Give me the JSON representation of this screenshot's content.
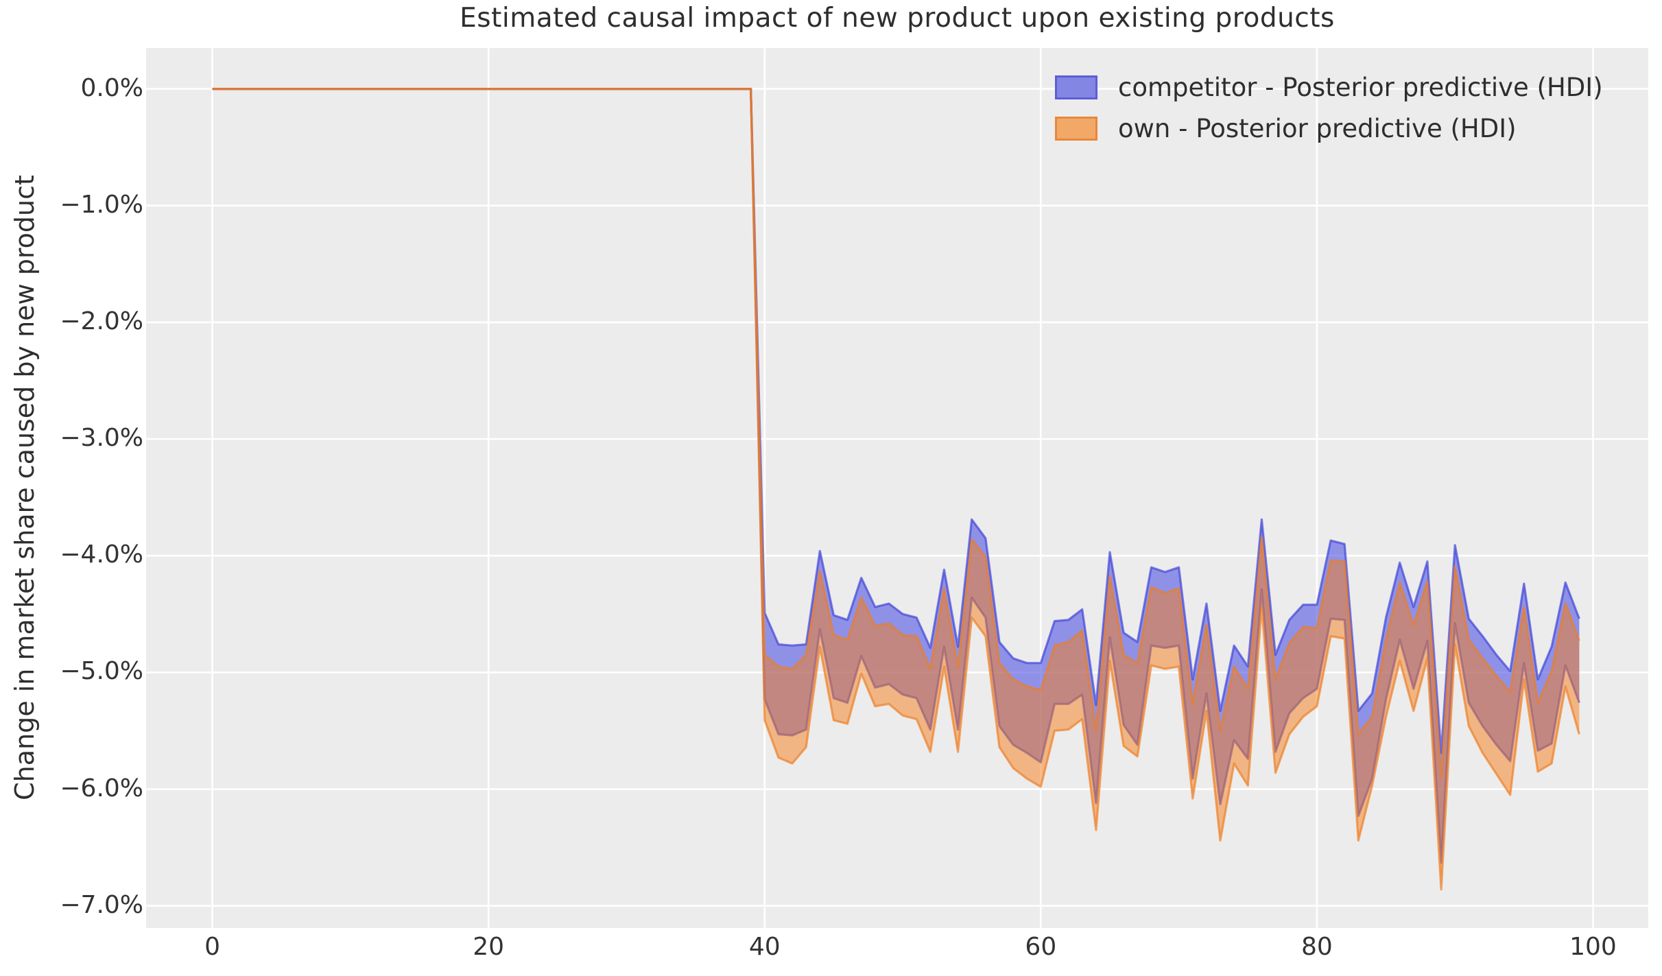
{
  "title": "Estimated causal impact of new product upon existing products",
  "colors": {
    "figure_bg": "#ffffff",
    "axes_bg": "#ececec",
    "grid": "#ffffff",
    "text": "#2e2e2e",
    "tick_text": "#333333",
    "competitor_fill": "rgba(85,88,228,0.62)",
    "competitor_edge": "rgba(60,65,215,0.68)",
    "own_fill": "rgba(245,125,25,0.5)",
    "own_edge": "rgba(238,125,35,0.68)"
  },
  "legend": {
    "items": [
      {
        "label": "competitor - Posterior predictive (HDI)",
        "fill": "#8486e3",
        "edge": "#5c5ed6"
      },
      {
        "label": "own - Posterior predictive (HDI)",
        "fill": "#f2a967",
        "edge": "#e8873c"
      }
    ]
  },
  "chart_data": {
    "type": "area",
    "title": "Estimated causal impact of new product upon existing products",
    "xlabel": "",
    "ylabel": "Change in market share caused by new product",
    "xlim": [
      -4.8,
      104
    ],
    "ylim": [
      -7.19,
      0.35
    ],
    "grid": true,
    "legend_position": "upper right",
    "x_start": 0,
    "x_step": 1,
    "n_points": 100,
    "x_ticks": [
      {
        "value": 0,
        "label": "0"
      },
      {
        "value": 20,
        "label": "20"
      },
      {
        "value": 40,
        "label": "40"
      },
      {
        "value": 60,
        "label": "60"
      },
      {
        "value": 80,
        "label": "80"
      },
      {
        "value": 100,
        "label": "100"
      }
    ],
    "y_ticks": [
      {
        "value": 0,
        "label": "0.0%"
      },
      {
        "value": -1,
        "label": "−1.0%"
      },
      {
        "value": -2,
        "label": "−2.0%"
      },
      {
        "value": -3,
        "label": "−3.0%"
      },
      {
        "value": -4,
        "label": "−4.0%"
      },
      {
        "value": -5,
        "label": "−5.0%"
      },
      {
        "value": -6,
        "label": "−6.0%"
      },
      {
        "value": -7,
        "label": "−7.0%"
      }
    ],
    "series": [
      {
        "name": "competitor - Posterior predictive (HDI)",
        "kind": "hdi_band",
        "fill": "rgba(85,88,228,0.62)",
        "edge": "rgba(60,65,215,0.68)",
        "hi": [
          0,
          0,
          0,
          0,
          0,
          0,
          0,
          0,
          0,
          0,
          0,
          0,
          0,
          0,
          0,
          0,
          0,
          0,
          0,
          0,
          0,
          0,
          0,
          0,
          0,
          0,
          0,
          0,
          0,
          0,
          0,
          0,
          0,
          0,
          0,
          0,
          0,
          0,
          0,
          0,
          -4.49,
          -4.76,
          -4.77,
          -4.76,
          -3.96,
          -4.51,
          -4.55,
          -4.19,
          -4.44,
          -4.41,
          -4.5,
          -4.53,
          -4.79,
          -4.12,
          -4.78,
          -3.69,
          -3.85,
          -4.74,
          -4.88,
          -4.92,
          -4.92,
          -4.56,
          -4.55,
          -4.46,
          -5.28,
          -3.97,
          -4.66,
          -4.74,
          -4.1,
          -4.14,
          -4.1,
          -5.06,
          -4.41,
          -5.33,
          -4.77,
          -4.95,
          -3.69,
          -4.85,
          -4.55,
          -4.42,
          -4.42,
          -3.87,
          -3.9,
          -5.33,
          -5.18,
          -4.53,
          -4.06,
          -4.44,
          -4.05,
          -5.69,
          -3.91,
          -4.54,
          -4.69,
          -4.85,
          -4.99,
          -4.24,
          -5.06,
          -4.78,
          -4.23,
          -4.54
        ],
        "lo": [
          0,
          0,
          0,
          0,
          0,
          0,
          0,
          0,
          0,
          0,
          0,
          0,
          0,
          0,
          0,
          0,
          0,
          0,
          0,
          0,
          0,
          0,
          0,
          0,
          0,
          0,
          0,
          0,
          0,
          0,
          0,
          0,
          0,
          0,
          0,
          0,
          0,
          0,
          0,
          0,
          -5.23,
          -5.53,
          -5.54,
          -5.49,
          -4.63,
          -5.22,
          -5.26,
          -4.86,
          -5.13,
          -5.1,
          -5.19,
          -5.22,
          -5.49,
          -4.78,
          -5.49,
          -4.36,
          -4.53,
          -5.46,
          -5.62,
          -5.69,
          -5.77,
          -5.27,
          -5.27,
          -5.19,
          -6.12,
          -4.7,
          -5.45,
          -5.62,
          -4.77,
          -4.79,
          -4.77,
          -5.91,
          -5.18,
          -6.13,
          -5.58,
          -5.74,
          -4.29,
          -5.68,
          -5.35,
          -5.22,
          -5.14,
          -4.54,
          -4.55,
          -6.23,
          -5.91,
          -5.23,
          -4.72,
          -5.14,
          -4.73,
          -6.63,
          -4.58,
          -5.26,
          -5.46,
          -5.62,
          -5.76,
          -4.92,
          -5.67,
          -5.61,
          -4.94,
          -5.26
        ]
      },
      {
        "name": "own - Posterior predictive (HDI)",
        "kind": "hdi_band",
        "fill": "rgba(245,125,25,0.5)",
        "edge": "rgba(238,125,35,0.68)",
        "hi": [
          0,
          0,
          0,
          0,
          0,
          0,
          0,
          0,
          0,
          0,
          0,
          0,
          0,
          0,
          0,
          0,
          0,
          0,
          0,
          0,
          0,
          0,
          0,
          0,
          0,
          0,
          0,
          0,
          0,
          0,
          0,
          0,
          0,
          0,
          0,
          0,
          0,
          0,
          0,
          0,
          -4.85,
          -4.95,
          -4.97,
          -4.85,
          -4.13,
          -4.68,
          -4.72,
          -4.36,
          -4.6,
          -4.58,
          -4.68,
          -4.69,
          -4.97,
          -4.28,
          -4.96,
          -3.86,
          -4.01,
          -4.92,
          -5.06,
          -5.12,
          -5.15,
          -4.77,
          -4.74,
          -4.64,
          -5.5,
          -4.17,
          -4.85,
          -4.92,
          -4.27,
          -4.32,
          -4.28,
          -5.27,
          -4.59,
          -5.5,
          -4.95,
          -5.14,
          -3.84,
          -5.06,
          -4.75,
          -4.61,
          -4.62,
          -4.04,
          -4.05,
          -5.53,
          -5.38,
          -4.72,
          -4.23,
          -4.6,
          -4.22,
          -5.9,
          -4.09,
          -4.72,
          -4.88,
          -5.03,
          -5.17,
          -4.44,
          -5.26,
          -4.99,
          -4.41,
          -4.73
        ],
        "lo": [
          0,
          0,
          0,
          0,
          0,
          0,
          0,
          0,
          0,
          0,
          0,
          0,
          0,
          0,
          0,
          0,
          0,
          0,
          0,
          0,
          0,
          0,
          0,
          0,
          0,
          0,
          0,
          0,
          0,
          0,
          0,
          0,
          0,
          0,
          0,
          0,
          0,
          0,
          0,
          0,
          -5.41,
          -5.73,
          -5.78,
          -5.64,
          -4.78,
          -5.41,
          -5.44,
          -5.01,
          -5.29,
          -5.27,
          -5.37,
          -5.4,
          -5.68,
          -4.95,
          -5.68,
          -4.53,
          -4.69,
          -5.64,
          -5.82,
          -5.91,
          -5.98,
          -5.5,
          -5.49,
          -5.4,
          -6.35,
          -4.9,
          -5.63,
          -5.72,
          -4.94,
          -4.97,
          -4.95,
          -6.08,
          -5.33,
          -6.44,
          -5.78,
          -5.97,
          -4.44,
          -5.86,
          -5.53,
          -5.38,
          -5.29,
          -4.69,
          -4.71,
          -6.44,
          -5.97,
          -5.38,
          -4.9,
          -5.33,
          -4.88,
          -6.86,
          -4.76,
          -5.46,
          -5.69,
          -5.87,
          -6.05,
          -5.06,
          -5.85,
          -5.78,
          -5.12,
          -5.53
        ]
      }
    ]
  }
}
